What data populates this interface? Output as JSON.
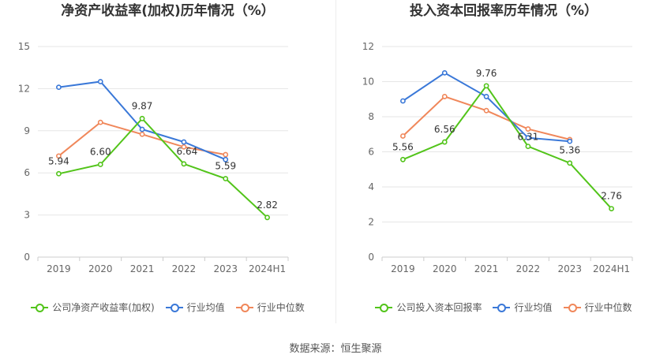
{
  "source_text": "数据来源：恒生聚源",
  "chart_data": [
    {
      "type": "line",
      "title": "净资产收益率(加权)历年情况（%）",
      "categories": [
        "2019",
        "2020",
        "2021",
        "2022",
        "2023",
        "2024H1"
      ],
      "ylim": [
        0,
        15
      ],
      "yticks": [
        0,
        3,
        6,
        9,
        12,
        15
      ],
      "grid": true,
      "legend_position": "bottom",
      "series": [
        {
          "name": "公司净资产收益率(加权)",
          "color": "#52c41a",
          "values": [
            5.94,
            6.6,
            9.87,
            6.64,
            5.59,
            2.82
          ],
          "labels": [
            "5.94",
            "6.60",
            "9.87",
            "6.64",
            "5.59",
            "2.82"
          ]
        },
        {
          "name": "行业均值",
          "color": "#3a78d8",
          "values": [
            12.1,
            12.5,
            9.1,
            8.2,
            6.95,
            null
          ]
        },
        {
          "name": "行业中位数",
          "color": "#f0875a",
          "values": [
            7.2,
            9.6,
            8.75,
            7.85,
            7.3,
            null
          ]
        }
      ]
    },
    {
      "type": "line",
      "title": "投入资本回报率历年情况（%）",
      "categories": [
        "2019",
        "2020",
        "2021",
        "2022",
        "2023",
        "2024H1"
      ],
      "ylim": [
        0,
        12
      ],
      "yticks": [
        0,
        2,
        4,
        6,
        8,
        10,
        12
      ],
      "grid": true,
      "legend_position": "bottom",
      "series": [
        {
          "name": "公司投入资本回报率",
          "color": "#52c41a",
          "values": [
            5.56,
            6.56,
            9.76,
            6.31,
            5.36,
            2.76
          ],
          "labels": [
            "5.56",
            "6.56",
            "9.76",
            "6.31",
            "5.36",
            "2.76"
          ]
        },
        {
          "name": "行业均值",
          "color": "#3a78d8",
          "values": [
            8.9,
            10.5,
            9.15,
            6.8,
            6.6,
            null
          ]
        },
        {
          "name": "行业中位数",
          "color": "#f0875a",
          "values": [
            6.9,
            9.15,
            8.35,
            7.3,
            6.7,
            null
          ]
        }
      ]
    }
  ]
}
